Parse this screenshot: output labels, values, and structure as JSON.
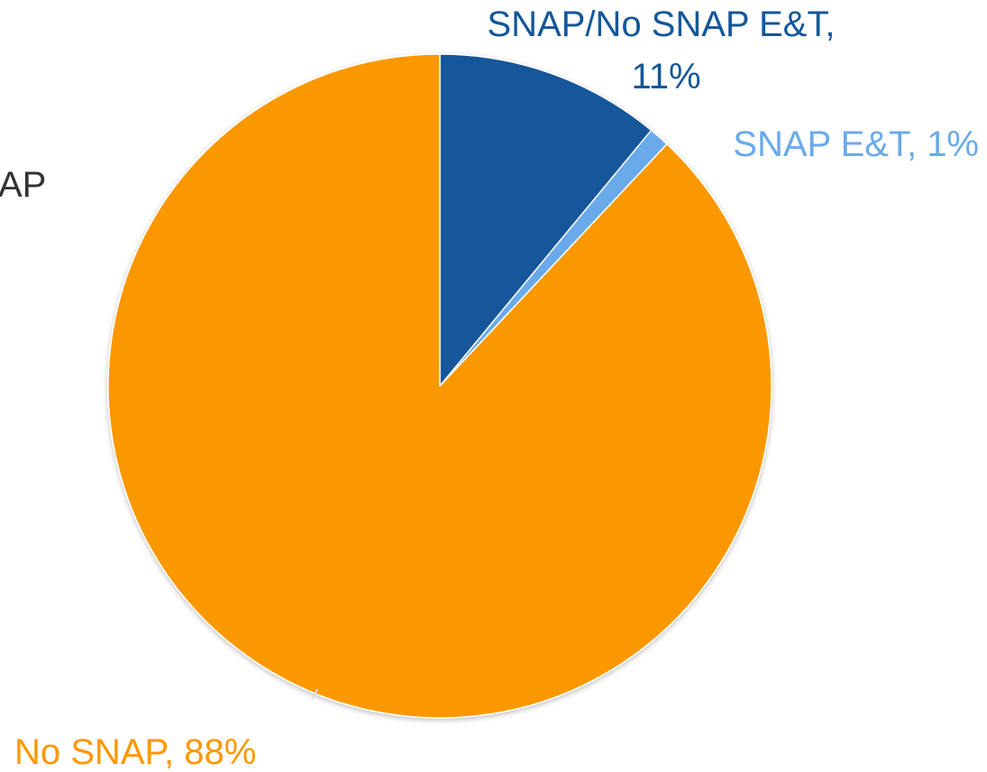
{
  "chart_data": {
    "type": "pie",
    "title": "",
    "slices": [
      {
        "label": "SNAP/No SNAP E&T",
        "value": 11,
        "display": "11%",
        "color": "#14579a"
      },
      {
        "label": "SNAP E&T",
        "value": 1,
        "display": "1%",
        "color": "#6aaaea"
      },
      {
        "label": "No SNAP",
        "value": 88,
        "display": "88%",
        "color": "#fb9800"
      }
    ],
    "start_angle_deg": 0,
    "direction": "clockwise",
    "legend": "none",
    "clipped_label_fragment": "AP"
  }
}
